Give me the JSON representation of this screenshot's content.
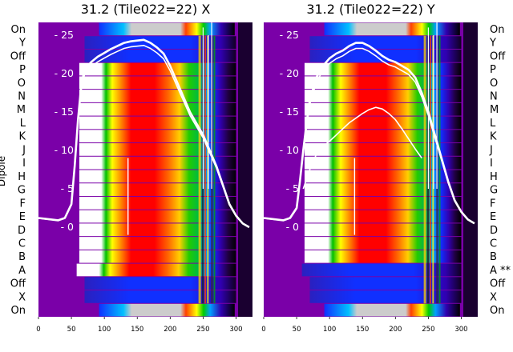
{
  "chart_data": [
    {
      "type": "heatmap",
      "title": "31.2 (Tile022=22) X",
      "ylabel": "Dipole",
      "x_ticks": [
        0,
        50,
        100,
        150,
        200,
        250,
        300
      ],
      "xlim": [
        0,
        325
      ],
      "y_ticks": [
        0,
        5,
        10,
        15,
        20,
        25
      ],
      "row_labels": [
        "On",
        "X",
        "Off",
        "A",
        "B",
        "C",
        "D",
        "E",
        "F",
        "G",
        "H",
        "I",
        "J",
        "K",
        "L",
        "M",
        "N",
        "O",
        "P",
        "Off",
        "Y",
        "On"
      ],
      "spectrum_line": {
        "x": [
          0,
          10,
          20,
          30,
          40,
          50,
          55,
          60,
          65,
          70,
          80,
          90,
          100,
          110,
          120,
          130,
          140,
          150,
          160,
          170,
          180,
          190,
          200,
          210,
          220,
          230,
          240,
          250,
          260,
          270,
          280,
          290,
          300,
          310,
          320
        ],
        "y": [
          1.2,
          1.1,
          1.0,
          0.9,
          1.2,
          3.0,
          8.0,
          14.0,
          18.5,
          20.5,
          21.5,
          22.2,
          22.7,
          23.2,
          23.6,
          24.0,
          24.2,
          24.3,
          24.4,
          24.0,
          23.4,
          22.6,
          21.0,
          19.0,
          17.0,
          15.0,
          13.5,
          12.0,
          10.0,
          8.0,
          5.5,
          3.0,
          1.5,
          0.5,
          0.0
        ]
      }
    },
    {
      "type": "heatmap",
      "title": "31.2 (Tile022=22) Y",
      "x_ticks": [
        0,
        50,
        100,
        150,
        200,
        250,
        300
      ],
      "xlim": [
        0,
        325
      ],
      "y_ticks": [
        0,
        5,
        10,
        15,
        20,
        25
      ],
      "row_labels": [
        "On",
        "X",
        "Off",
        "A **",
        "B",
        "C",
        "D",
        "E",
        "F",
        "G",
        "H",
        "I",
        "J",
        "K",
        "L",
        "M",
        "N",
        "O",
        "P",
        "Off",
        "Y",
        "On"
      ],
      "spectrum_line": {
        "x": [
          0,
          10,
          20,
          30,
          40,
          50,
          55,
          60,
          65,
          70,
          80,
          90,
          100,
          110,
          120,
          130,
          140,
          150,
          160,
          170,
          180,
          190,
          200,
          210,
          220,
          230,
          240,
          250,
          260,
          270,
          280,
          290,
          300,
          310,
          320
        ],
        "y": [
          1.2,
          1.1,
          1.0,
          0.9,
          1.2,
          2.5,
          6.0,
          10.0,
          13.5,
          16.5,
          19.5,
          21.0,
          22.0,
          22.6,
          23.0,
          23.6,
          24.0,
          24.0,
          23.6,
          23.0,
          22.3,
          21.8,
          21.5,
          21.0,
          20.5,
          19.5,
          17.5,
          15.0,
          12.0,
          9.0,
          6.0,
          3.5,
          2.0,
          1.0,
          0.5
        ]
      },
      "secondary_line": {
        "x": [
          60,
          70,
          80,
          90,
          100,
          110,
          120,
          130,
          140,
          150,
          160,
          170,
          180,
          190,
          200,
          210,
          220,
          230,
          240
        ],
        "y": [
          5.0,
          7.5,
          9.5,
          10.5,
          11.2,
          12.0,
          12.8,
          13.6,
          14.2,
          14.8,
          15.3,
          15.6,
          15.4,
          14.8,
          14.0,
          12.8,
          11.5,
          10.2,
          9.0
        ]
      }
    }
  ]
}
